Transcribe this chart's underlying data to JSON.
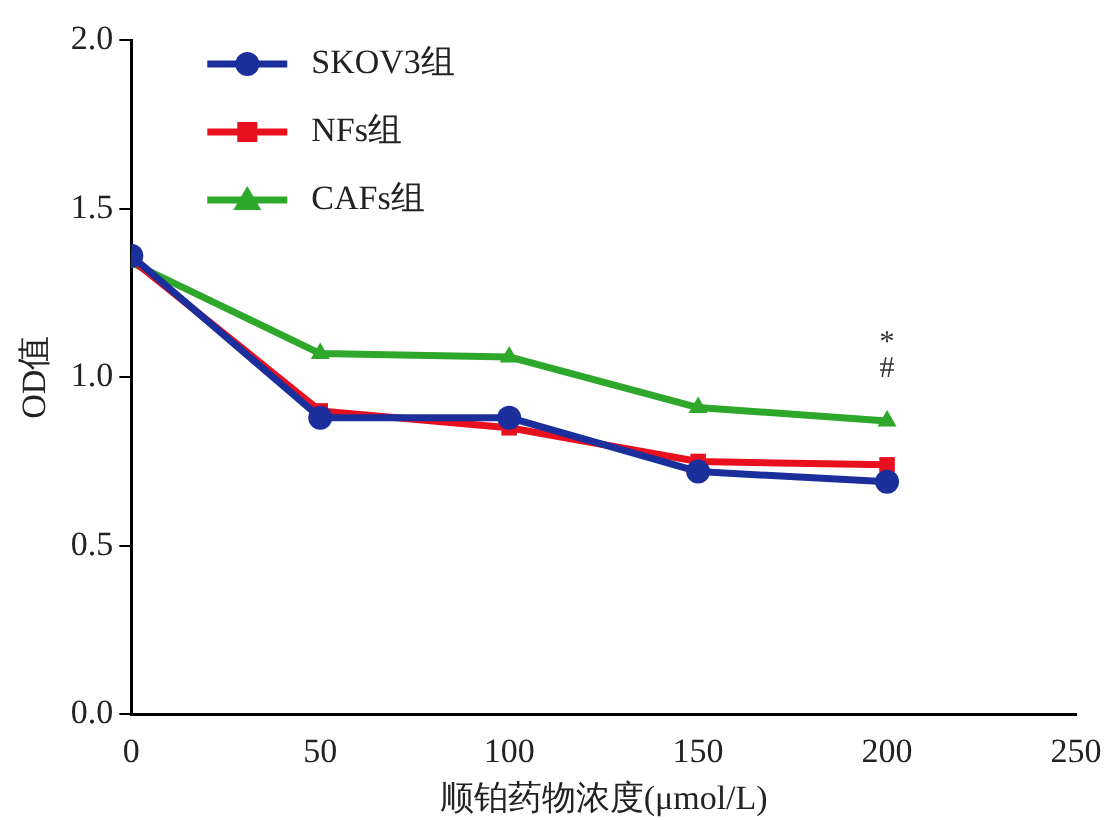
{
  "chart_data": {
    "type": "line",
    "xlabel": "顺铂药物浓度(μmol/L)",
    "ylabel": "OD值",
    "x": [
      0,
      50,
      100,
      150,
      200
    ],
    "series": [
      {
        "name": "SKOV3组",
        "color": "#1a2e9c",
        "values": [
          1.36,
          0.88,
          0.88,
          0.72,
          0.69
        ],
        "marker": "circle"
      },
      {
        "name": "NFs组",
        "color": "#e8101e",
        "values": [
          1.35,
          0.9,
          0.85,
          0.75,
          0.74
        ],
        "marker": "square"
      },
      {
        "name": "CAFs组",
        "color": "#2ea82a",
        "values": [
          1.34,
          1.07,
          1.06,
          0.91,
          0.87
        ],
        "marker": "triangle"
      }
    ],
    "xlim": [
      0,
      250
    ],
    "xticks": [
      0,
      50,
      100,
      150,
      200,
      250
    ],
    "ylim": [
      0,
      2
    ],
    "yticks": [
      {
        "value": 0,
        "label": "0.0"
      },
      {
        "value": 0.5,
        "label": "0.5"
      },
      {
        "value": 1,
        "label": "1.0"
      },
      {
        "value": 1.5,
        "label": "1.5"
      },
      {
        "value": 2,
        "label": "2.0"
      }
    ],
    "annotations": [
      "#",
      "*"
    ],
    "grid": false,
    "legend": "top left",
    "line_style": "solid"
  }
}
